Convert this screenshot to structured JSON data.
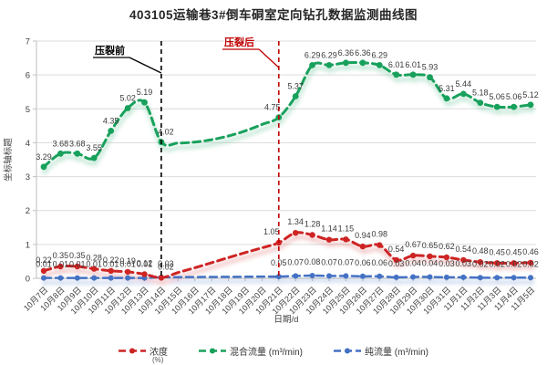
{
  "colors": {
    "title_text": "#262626",
    "grid": "#dcdcdc",
    "axis": "#bfbfbf",
    "tick_text": "#404040",
    "data_label_text": "#3a3a3a",
    "annotation_black": "#000000",
    "annotation_red": "#c00000"
  },
  "chart_data": {
    "type": "line",
    "title": "403105运输巷3#倒车硐室定向钻孔数据监测曲线图",
    "xlabel": "日期/d",
    "ylabel": "坐标轴标题",
    "ylim": [
      0,
      7
    ],
    "yticks": [
      0,
      1,
      2,
      3,
      4,
      5,
      6,
      7
    ],
    "grid": true,
    "legend_position": "bottom",
    "categories": [
      "10月7日",
      "10月8日",
      "10月9日",
      "10月10日",
      "10月11日",
      "10月12日",
      "10月13日",
      "10月14日",
      "10月15日",
      "10月16日",
      "10月17日",
      "10月18日",
      "10月19日",
      "10月20日",
      "10月21日",
      "10月22日",
      "10月23日",
      "10月24日",
      "10月25日",
      "10月26日",
      "10月27日",
      "10月28日",
      "10月29日",
      "10月30日",
      "10月31日",
      "11月1日",
      "11月2日",
      "11月3日",
      "11月4日",
      "11月5日"
    ],
    "series": [
      {
        "name": "浓度",
        "unit": "(%)",
        "color": "#ce2424",
        "line_style": "dashed-with-round-markers",
        "values": [
          0.22,
          0.35,
          0.35,
          0.28,
          0.22,
          0.19,
          0.12,
          0.02,
          0.17,
          0.31,
          0.46,
          0.61,
          0.76,
          0.9,
          1.05,
          1.34,
          1.28,
          1.14,
          1.15,
          0.94,
          0.98,
          0.54,
          0.67,
          0.65,
          0.62,
          0.54,
          0.48,
          0.45,
          0.45,
          0.46
        ],
        "point_labels": [
          "0.22",
          "0.35",
          "0.35",
          "0.28",
          "0.22",
          "0.19",
          "0.12",
          "0.02",
          null,
          null,
          null,
          null,
          null,
          null,
          "1.05",
          "1.34",
          "1.28",
          "1.14",
          "1.15",
          "0.94",
          "0.98",
          "0.54",
          "0.67",
          "0.65",
          "0.62",
          "0.54",
          "0.48",
          "0.45",
          "0.45",
          "0.46"
        ]
      },
      {
        "name": "混合流量 (m³/min)",
        "unit": "",
        "color": "#18a15c",
        "line_style": "dashed-with-round-markers",
        "values": [
          3.29,
          3.68,
          3.68,
          3.55,
          4.35,
          5.02,
          5.19,
          4.02,
          3.99,
          4.02,
          4.09,
          4.2,
          4.35,
          4.54,
          4.75,
          5.37,
          6.29,
          6.29,
          6.36,
          6.36,
          6.29,
          6.01,
          6.01,
          5.93,
          5.31,
          5.44,
          5.18,
          5.06,
          5.06,
          5.12
        ],
        "point_labels": [
          "3.29",
          "3.68",
          "3.68",
          "3.55",
          "4.35",
          "5.02",
          "5.19",
          "4.02",
          null,
          null,
          null,
          null,
          null,
          null,
          "4.75",
          "5.37",
          "6.29",
          "6.29",
          "6.36",
          "6.36",
          "6.29",
          "6.01",
          "6.01",
          "5.93",
          "5.31",
          "5.44",
          "5.18",
          "5.06",
          "5.06",
          "5.12"
        ]
      },
      {
        "name": "纯流量 (m³/min)",
        "unit": "",
        "color": "#4472c4",
        "line_style": "dashed-with-round-markers",
        "values": [
          0.01,
          0.01,
          0.01,
          0.01,
          0.01,
          0.01,
          0.01,
          0.03,
          0.034,
          0.037,
          0.04,
          0.043,
          0.047,
          0.05,
          0.05,
          0.07,
          0.08,
          0.07,
          0.07,
          0.06,
          0.06,
          0.03,
          0.04,
          0.04,
          0.03,
          0.03,
          0.02,
          0.02,
          0.02,
          0.02
        ],
        "point_labels": [
          "0.01",
          "0.01",
          "0.01",
          "0.01",
          "0.01",
          "0.01",
          "0.01",
          "0.03",
          null,
          null,
          null,
          null,
          null,
          null,
          "0.05",
          "0.07",
          "0.08",
          "0.07",
          "0.07",
          "0.06",
          "0.06",
          "0.03",
          "0.04",
          "0.04",
          "0.03",
          "0.03",
          "0.02",
          "0.02",
          "0.02",
          "0.02"
        ]
      }
    ],
    "annotations": [
      {
        "text": "压裂前",
        "x_category": "10月14日",
        "x_index": 7,
        "color": "#000000"
      },
      {
        "text": "压裂后",
        "x_category": "10月21日",
        "x_index": 14,
        "color": "#c00000"
      }
    ]
  }
}
